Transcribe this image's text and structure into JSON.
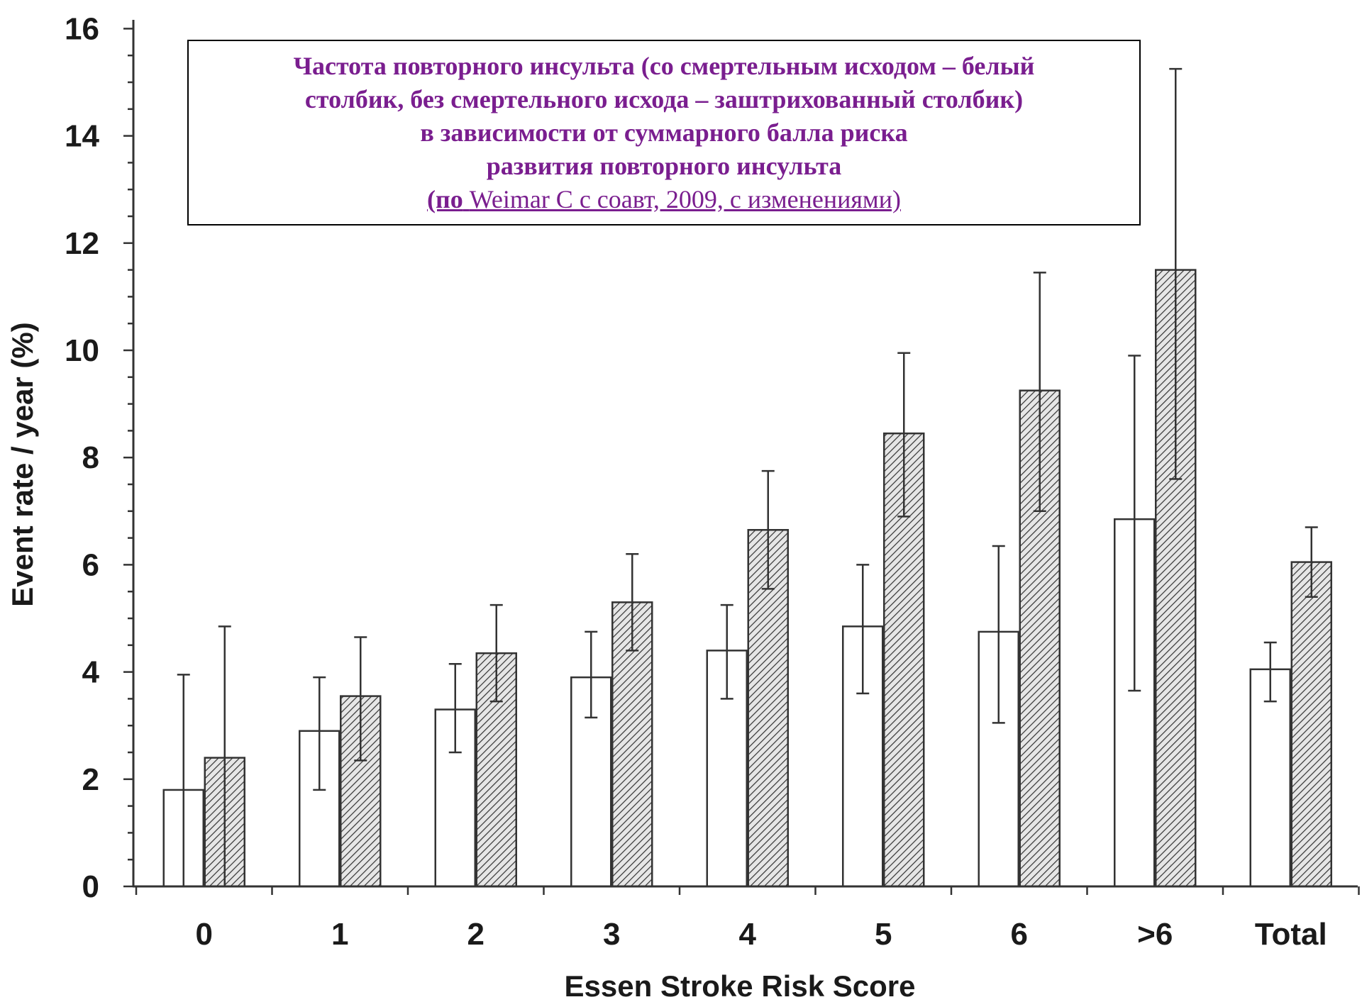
{
  "caption": {
    "lines": [
      "Частота повторного инсульта (со смертельным исходом – белый",
      "столбик, без смертельного исхода – заштрихованный столбик)",
      "в зависимости от суммарного балла риска",
      "развития повторного инсульта"
    ],
    "source_prefix": "(по",
    "source_text": "Weimar C с соавт, 2009, с изменениями)"
  },
  "chart_data": {
    "type": "bar",
    "xlabel": "Essen Stroke Risk Score",
    "ylabel": "Event rate / year (%)",
    "ylim": [
      0,
      16
    ],
    "yticks": [
      0,
      2,
      4,
      6,
      8,
      10,
      12,
      14,
      16
    ],
    "grid": false,
    "categories": [
      "0",
      "1",
      "2",
      "3",
      "4",
      "5",
      "6",
      ">6",
      "Total"
    ],
    "series": [
      {
        "style": "white",
        "values": [
          1.8,
          2.9,
          3.3,
          3.9,
          4.4,
          4.85,
          4.75,
          6.85,
          4.05
        ],
        "err_low": [
          0.0,
          1.8,
          2.5,
          3.15,
          3.5,
          3.6,
          3.05,
          3.65,
          3.45
        ],
        "err_high": [
          3.95,
          3.9,
          4.15,
          4.75,
          5.25,
          6.0,
          6.35,
          9.9,
          4.55
        ]
      },
      {
        "style": "hatched",
        "values": [
          2.4,
          3.55,
          4.35,
          5.3,
          6.65,
          8.45,
          9.25,
          11.5,
          6.05
        ],
        "err_low": [
          0.0,
          2.35,
          3.45,
          4.4,
          5.55,
          6.9,
          7.0,
          7.6,
          5.4
        ],
        "err_high": [
          4.85,
          4.65,
          5.25,
          6.2,
          7.75,
          9.95,
          11.45,
          15.25,
          6.7
        ]
      }
    ],
    "colors": {
      "white_fill": "#ffffff",
      "hatch_fill": "#e6e6e6",
      "hatch_line": "#333333",
      "stroke": "#333333"
    }
  }
}
